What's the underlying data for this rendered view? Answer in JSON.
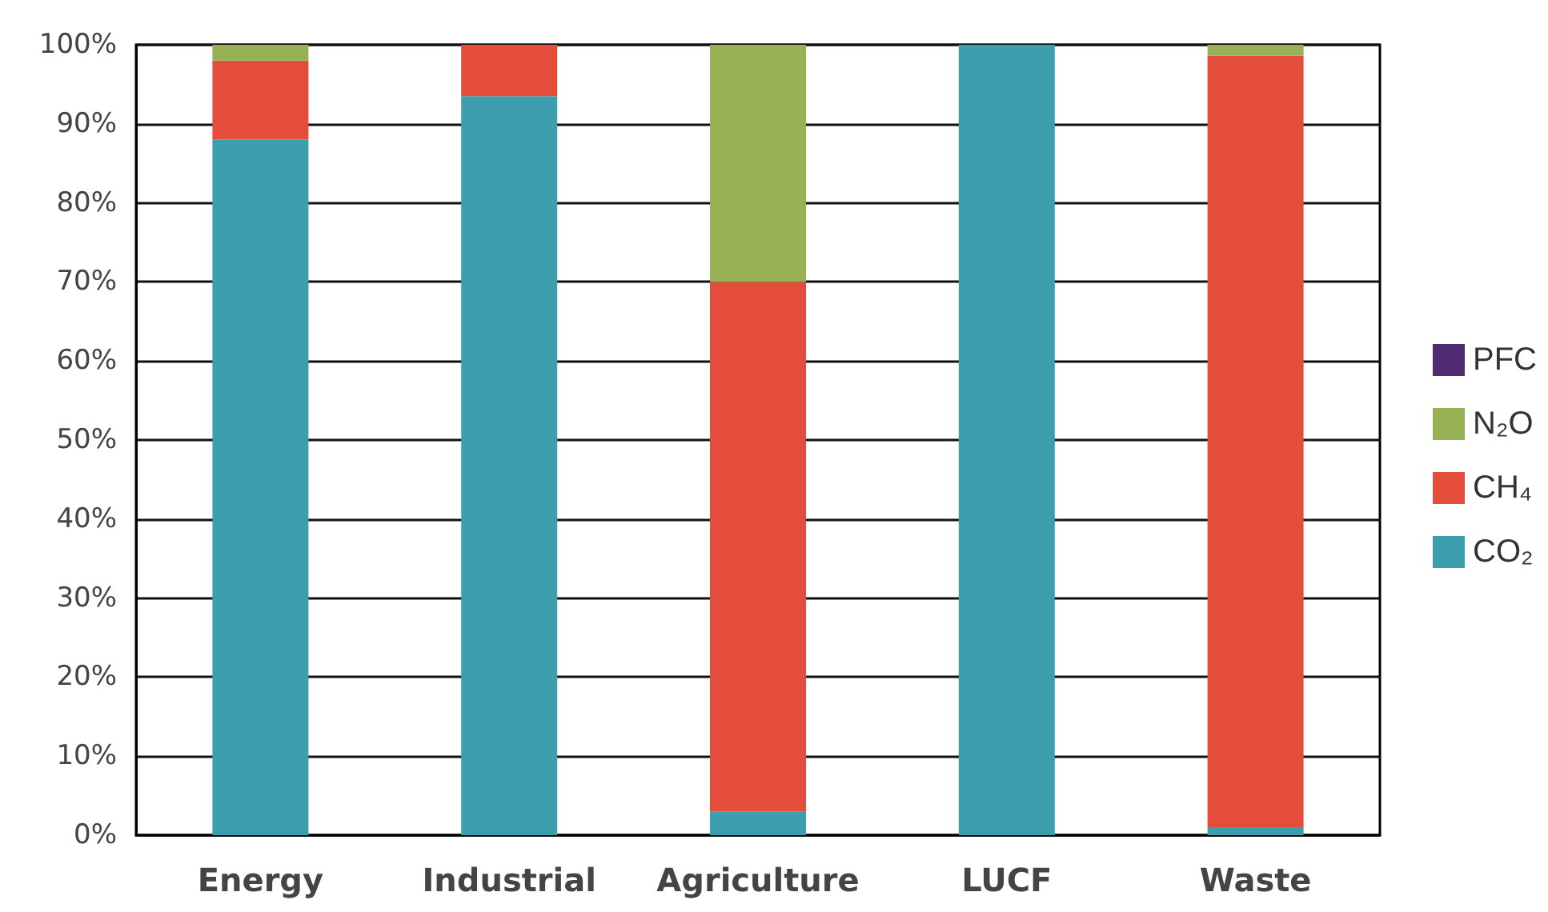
{
  "chart_data": {
    "type": "bar",
    "stacked": true,
    "categories": [
      "Energy",
      "Industrial",
      "Agriculture",
      "LUCF",
      "Waste"
    ],
    "series": [
      {
        "name": "CO₂",
        "color": "#3d9fad",
        "values": [
          88,
          93.5,
          3,
          100,
          1
        ]
      },
      {
        "name": "CH₄",
        "color": "#e44d3c",
        "values": [
          10,
          6.5,
          67,
          0,
          97.6
        ]
      },
      {
        "name": "N₂O",
        "color": "#97b155",
        "values": [
          2,
          0,
          30,
          0,
          1.4
        ]
      },
      {
        "name": "PFC",
        "color": "#4f2a73",
        "values": [
          0,
          0,
          0,
          0,
          0
        ]
      }
    ],
    "ylim": [
      0,
      100
    ],
    "yticks": [
      {
        "value": 0,
        "label": "0%"
      },
      {
        "value": 10,
        "label": "10%"
      },
      {
        "value": 20,
        "label": "20%"
      },
      {
        "value": 30,
        "label": "30%"
      },
      {
        "value": 40,
        "label": "40%"
      },
      {
        "value": 50,
        "label": "50%"
      },
      {
        "value": 60,
        "label": "60%"
      },
      {
        "value": 70,
        "label": "70%"
      },
      {
        "value": 80,
        "label": "80%"
      },
      {
        "value": 90,
        "label": "90%"
      },
      {
        "value": 100,
        "label": "100%"
      }
    ],
    "grid": "y",
    "legend": "right"
  }
}
